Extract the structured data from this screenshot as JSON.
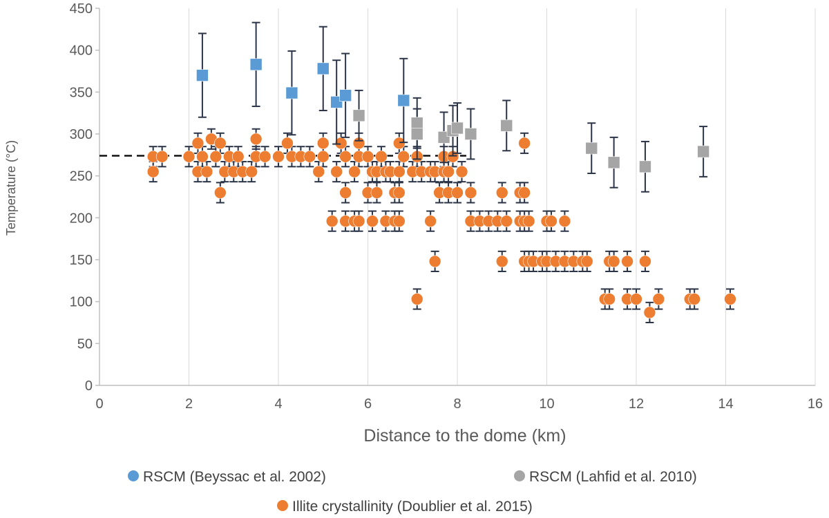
{
  "chart_data": {
    "type": "scatter",
    "xlabel": "Distance to the dome (km)",
    "ylabel": "Temperature (°C)",
    "xlim": [
      0,
      16
    ],
    "ylim": [
      0,
      450
    ],
    "x_ticks": [
      0,
      2,
      4,
      6,
      8,
      10,
      12,
      14,
      16
    ],
    "y_ticks": [
      0,
      50,
      100,
      150,
      200,
      250,
      300,
      350,
      400,
      450
    ],
    "grid": "vertical",
    "legend_position": "bottom",
    "reference_line": {
      "y": 274,
      "x_range": [
        0,
        8.2
      ],
      "style": "dashed"
    },
    "series": [
      {
        "name": "RSCM (Beyssac et al. 2002)",
        "color": "#5B9BD5",
        "marker": "square",
        "error": 50,
        "points": [
          [
            2.3,
            370
          ],
          [
            3.5,
            383
          ],
          [
            4.3,
            349
          ],
          [
            5.0,
            378
          ],
          [
            5.3,
            338
          ],
          [
            5.5,
            346
          ],
          [
            6.8,
            340
          ]
        ]
      },
      {
        "name": "RSCM (Lahfid et al. 2010)",
        "color": "#A5A5A5",
        "marker": "square",
        "error": 30,
        "points": [
          [
            5.8,
            322
          ],
          [
            7.1,
            313
          ],
          [
            7.1,
            300
          ],
          [
            7.7,
            296
          ],
          [
            7.9,
            304
          ],
          [
            8.0,
            307
          ],
          [
            8.3,
            300
          ],
          [
            9.1,
            310
          ],
          [
            11.0,
            283
          ],
          [
            11.5,
            266
          ],
          [
            12.2,
            261
          ],
          [
            13.5,
            279
          ]
        ]
      },
      {
        "name": "Illite crystallinity (Doublier et al. 2015)",
        "color": "#ED7D31",
        "marker": "circle",
        "error": 12,
        "points": [
          [
            1.2,
            255
          ],
          [
            1.2,
            273
          ],
          [
            1.4,
            273
          ],
          [
            2.0,
            273
          ],
          [
            2.2,
            255
          ],
          [
            2.2,
            289
          ],
          [
            2.3,
            273
          ],
          [
            2.4,
            255
          ],
          [
            2.5,
            294
          ],
          [
            2.6,
            273
          ],
          [
            2.7,
            289
          ],
          [
            2.7,
            230
          ],
          [
            2.8,
            255
          ],
          [
            2.9,
            273
          ],
          [
            3.0,
            255
          ],
          [
            3.1,
            273
          ],
          [
            3.2,
            255
          ],
          [
            3.4,
            255
          ],
          [
            3.5,
            294
          ],
          [
            3.5,
            273
          ],
          [
            3.7,
            273
          ],
          [
            4.0,
            273
          ],
          [
            4.2,
            289
          ],
          [
            4.3,
            273
          ],
          [
            4.5,
            273
          ],
          [
            4.7,
            273
          ],
          [
            4.9,
            255
          ],
          [
            5.0,
            289
          ],
          [
            5.0,
            273
          ],
          [
            5.2,
            196
          ],
          [
            5.3,
            255
          ],
          [
            5.4,
            289
          ],
          [
            5.5,
            273
          ],
          [
            5.5,
            230
          ],
          [
            5.5,
            196
          ],
          [
            5.7,
            255
          ],
          [
            5.7,
            196
          ],
          [
            5.8,
            289
          ],
          [
            5.8,
            273
          ],
          [
            5.8,
            196
          ],
          [
            6.0,
            230
          ],
          [
            6.0,
            273
          ],
          [
            6.1,
            255
          ],
          [
            6.1,
            196
          ],
          [
            6.2,
            230
          ],
          [
            6.2,
            255
          ],
          [
            6.3,
            273
          ],
          [
            6.4,
            255
          ],
          [
            6.4,
            196
          ],
          [
            6.5,
            255
          ],
          [
            6.6,
            230
          ],
          [
            6.6,
            196
          ],
          [
            6.7,
            289
          ],
          [
            6.7,
            255
          ],
          [
            6.7,
            230
          ],
          [
            6.7,
            196
          ],
          [
            6.8,
            273
          ],
          [
            7.0,
            255
          ],
          [
            7.1,
            273
          ],
          [
            7.1,
            103
          ],
          [
            7.2,
            255
          ],
          [
            7.4,
            255
          ],
          [
            7.4,
            196
          ],
          [
            7.5,
            148
          ],
          [
            7.5,
            255
          ],
          [
            7.6,
            230
          ],
          [
            7.7,
            273
          ],
          [
            7.7,
            255
          ],
          [
            7.8,
            230
          ],
          [
            7.8,
            255
          ],
          [
            7.9,
            273
          ],
          [
            8.0,
            230
          ],
          [
            8.1,
            255
          ],
          [
            8.3,
            230
          ],
          [
            8.3,
            196
          ],
          [
            8.5,
            196
          ],
          [
            8.7,
            196
          ],
          [
            8.9,
            196
          ],
          [
            9.0,
            230
          ],
          [
            9.0,
            148
          ],
          [
            9.1,
            196
          ],
          [
            9.4,
            196
          ],
          [
            9.4,
            230
          ],
          [
            9.5,
            230
          ],
          [
            9.5,
            289
          ],
          [
            9.5,
            196
          ],
          [
            9.5,
            148
          ],
          [
            9.6,
            196
          ],
          [
            9.6,
            148
          ],
          [
            9.7,
            148
          ],
          [
            9.9,
            148
          ],
          [
            10.0,
            196
          ],
          [
            10.0,
            148
          ],
          [
            10.1,
            196
          ],
          [
            10.2,
            148
          ],
          [
            10.4,
            196
          ],
          [
            10.4,
            148
          ],
          [
            10.6,
            148
          ],
          [
            10.8,
            148
          ],
          [
            10.9,
            148
          ],
          [
            11.3,
            103
          ],
          [
            11.4,
            148
          ],
          [
            11.4,
            103
          ],
          [
            11.5,
            148
          ],
          [
            11.8,
            148
          ],
          [
            11.8,
            103
          ],
          [
            12.0,
            103
          ],
          [
            12.2,
            148
          ],
          [
            12.3,
            87
          ],
          [
            12.5,
            103
          ],
          [
            13.2,
            103
          ],
          [
            13.3,
            103
          ],
          [
            14.1,
            103
          ]
        ]
      }
    ]
  }
}
